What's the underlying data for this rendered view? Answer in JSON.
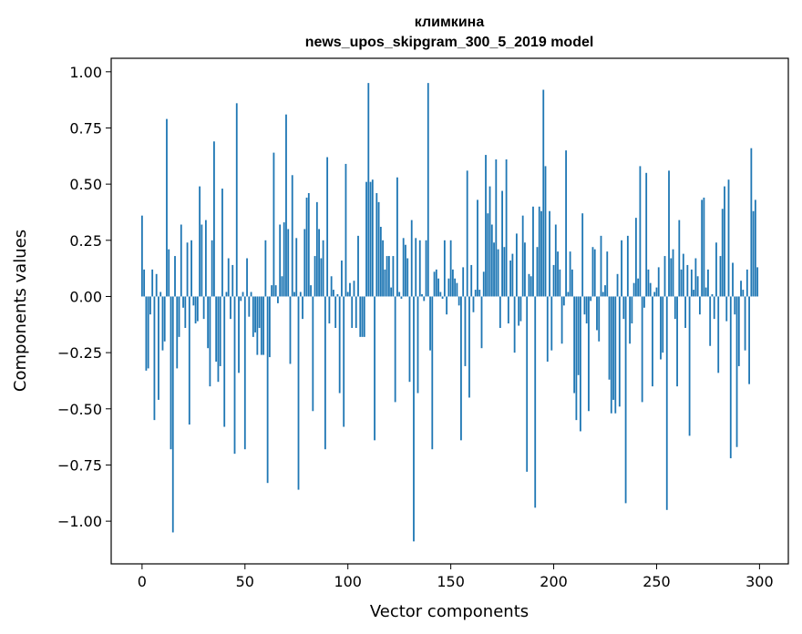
{
  "chart_data": {
    "type": "bar",
    "title": "климкина",
    "subtitle": "news_upos_skipgram_300_5_2019 model",
    "xlabel": "Vector components",
    "ylabel": "Components values",
    "xlim": [
      -15,
      314
    ],
    "ylim": [
      -1.19,
      1.06
    ],
    "xticks": [
      0,
      50,
      100,
      150,
      200,
      250,
      300
    ],
    "yticks": [
      -1.0,
      -0.75,
      -0.5,
      -0.25,
      0.0,
      0.25,
      0.5,
      0.75,
      1.0
    ],
    "ytick_labels": [
      "−1.00",
      "−0.75",
      "−0.50",
      "−0.25",
      "0.00",
      "0.25",
      "0.50",
      "0.75",
      "1.00"
    ],
    "grid": false,
    "bar_color": "#1f77b4",
    "x": [
      0,
      1,
      2,
      3,
      4,
      5,
      6,
      7,
      8,
      9,
      10,
      11,
      12,
      13,
      14,
      15,
      16,
      17,
      18,
      19,
      20,
      21,
      22,
      23,
      24,
      25,
      26,
      27,
      28,
      29,
      30,
      31,
      32,
      33,
      34,
      35,
      36,
      37,
      38,
      39,
      40,
      41,
      42,
      43,
      44,
      45,
      46,
      47,
      48,
      49,
      50,
      51,
      52,
      53,
      54,
      55,
      56,
      57,
      58,
      59,
      60,
      61,
      62,
      63,
      64,
      65,
      66,
      67,
      68,
      69,
      70,
      71,
      72,
      73,
      74,
      75,
      76,
      77,
      78,
      79,
      80,
      81,
      82,
      83,
      84,
      85,
      86,
      87,
      88,
      89,
      90,
      91,
      92,
      93,
      94,
      95,
      96,
      97,
      98,
      99,
      100,
      101,
      102,
      103,
      104,
      105,
      106,
      107,
      108,
      109,
      110,
      111,
      112,
      113,
      114,
      115,
      116,
      117,
      118,
      119,
      120,
      121,
      122,
      123,
      124,
      125,
      126,
      127,
      128,
      129,
      130,
      131,
      132,
      133,
      134,
      135,
      136,
      137,
      138,
      139,
      140,
      141,
      142,
      143,
      144,
      145,
      146,
      147,
      148,
      149,
      150,
      151,
      152,
      153,
      154,
      155,
      156,
      157,
      158,
      159,
      160,
      161,
      162,
      163,
      164,
      165,
      166,
      167,
      168,
      169,
      170,
      171,
      172,
      173,
      174,
      175,
      176,
      177,
      178,
      179,
      180,
      181,
      182,
      183,
      184,
      185,
      186,
      187,
      188,
      189,
      190,
      191,
      192,
      193,
      194,
      195,
      196,
      197,
      198,
      199,
      200,
      201,
      202,
      203,
      204,
      205,
      206,
      207,
      208,
      209,
      210,
      211,
      212,
      213,
      214,
      215,
      216,
      217,
      218,
      219,
      220,
      221,
      222,
      223,
      224,
      225,
      226,
      227,
      228,
      229,
      230,
      231,
      232,
      233,
      234,
      235,
      236,
      237,
      238,
      239,
      240,
      241,
      242,
      243,
      244,
      245,
      246,
      247,
      248,
      249,
      250,
      251,
      252,
      253,
      254,
      255,
      256,
      257,
      258,
      259,
      260,
      261,
      262,
      263,
      264,
      265,
      266,
      267,
      268,
      269,
      270,
      271,
      272,
      273,
      274,
      275,
      276,
      277,
      278,
      279,
      280,
      281,
      282,
      283,
      284,
      285,
      286,
      287,
      288,
      289,
      290,
      291,
      292,
      293,
      294,
      295,
      296,
      297,
      298,
      299
    ],
    "values": [
      0.36,
      0.12,
      -0.33,
      -0.32,
      -0.08,
      0.12,
      -0.55,
      0.1,
      -0.46,
      0.02,
      -0.24,
      -0.2,
      0.79,
      0.21,
      -0.68,
      -1.05,
      0.18,
      -0.32,
      -0.18,
      0.32,
      -0.05,
      -0.14,
      0.24,
      -0.57,
      0.25,
      -0.04,
      -0.12,
      -0.11,
      0.49,
      0.32,
      -0.1,
      0.34,
      -0.23,
      -0.4,
      0.25,
      0.69,
      -0.29,
      -0.38,
      -0.31,
      0.48,
      -0.58,
      0.02,
      0.17,
      -0.1,
      0.14,
      -0.7,
      0.86,
      -0.34,
      -0.02,
      0.02,
      -0.68,
      0.17,
      -0.09,
      0.02,
      -0.18,
      -0.16,
      -0.26,
      -0.14,
      -0.26,
      -0.26,
      0.25,
      -0.83,
      -0.27,
      0.05,
      0.64,
      0.05,
      -0.03,
      0.32,
      0.09,
      0.33,
      0.81,
      0.3,
      -0.3,
      0.54,
      0.02,
      0.26,
      -0.86,
      0.02,
      -0.1,
      0.3,
      0.44,
      0.46,
      0.05,
      -0.51,
      0.18,
      0.42,
      0.3,
      0.17,
      0.25,
      -0.68,
      0.62,
      -0.12,
      0.09,
      0.03,
      -0.14,
      0.01,
      -0.43,
      0.16,
      -0.58,
      0.59,
      0.02,
      0.06,
      -0.14,
      0.07,
      -0.14,
      0.27,
      -0.18,
      -0.18,
      -0.18,
      0.51,
      0.95,
      0.51,
      0.52,
      -0.64,
      0.46,
      0.42,
      0.31,
      0.25,
      0.12,
      0.18,
      0.18,
      0.04,
      0.18,
      -0.47,
      0.53,
      0.02,
      -0.01,
      0.26,
      0.23,
      0.17,
      -0.38,
      0.34,
      -1.09,
      0.26,
      -0.43,
      0.25,
      0.01,
      -0.02,
      0.25,
      0.95,
      -0.24,
      -0.68,
      0.11,
      0.12,
      0.08,
      0.02,
      -0.01,
      0.25,
      -0.08,
      0.08,
      0.25,
      0.12,
      0.08,
      0.06,
      -0.04,
      -0.64,
      0.13,
      -0.31,
      0.56,
      -0.45,
      0.14,
      -0.07,
      0.03,
      0.43,
      0.03,
      -0.23,
      0.11,
      0.63,
      0.37,
      0.49,
      0.32,
      0.24,
      0.61,
      0.21,
      -0.14,
      0.47,
      0.22,
      0.61,
      -0.12,
      0.16,
      0.19,
      -0.25,
      0.28,
      -0.13,
      -0.11,
      0.36,
      0.24,
      -0.78,
      0.1,
      0.09,
      0.4,
      -0.94,
      0.22,
      0.4,
      0.38,
      0.92,
      0.58,
      -0.29,
      0.38,
      -0.24,
      0.14,
      0.32,
      0.2,
      0.12,
      -0.21,
      -0.04,
      0.65,
      0.02,
      0.2,
      0.12,
      -0.43,
      -0.55,
      -0.35,
      -0.6,
      0.37,
      -0.08,
      -0.12,
      -0.51,
      -0.02,
      0.22,
      0.21,
      -0.15,
      -0.2,
      0.27,
      0.02,
      0.05,
      0.2,
      -0.37,
      -0.52,
      -0.46,
      -0.52,
      0.1,
      -0.49,
      0.25,
      -0.1,
      -0.92,
      0.27,
      -0.21,
      -0.12,
      0.06,
      0.35,
      0.08,
      0.58,
      -0.47,
      -0.05,
      0.55,
      0.12,
      0.06,
      -0.4,
      0.02,
      0.04,
      0.13,
      -0.28,
      -0.25,
      0.18,
      -0.95,
      0.56,
      0.17,
      0.21,
      -0.1,
      -0.4,
      0.34,
      0.12,
      0.19,
      -0.14,
      0.14,
      -0.62,
      0.12,
      0.03,
      0.17,
      0.09,
      -0.08,
      0.43,
      0.44,
      0.04,
      0.12,
      -0.22,
      0.01,
      -0.1,
      0.24,
      -0.34,
      0.18,
      0.39,
      0.49,
      -0.11,
      0.52,
      -0.72,
      0.15,
      -0.08,
      -0.67,
      -0.31,
      0.07,
      0.03,
      -0.24,
      0.12,
      -0.39,
      0.66,
      0.38,
      0.43,
      0.13
    ]
  }
}
